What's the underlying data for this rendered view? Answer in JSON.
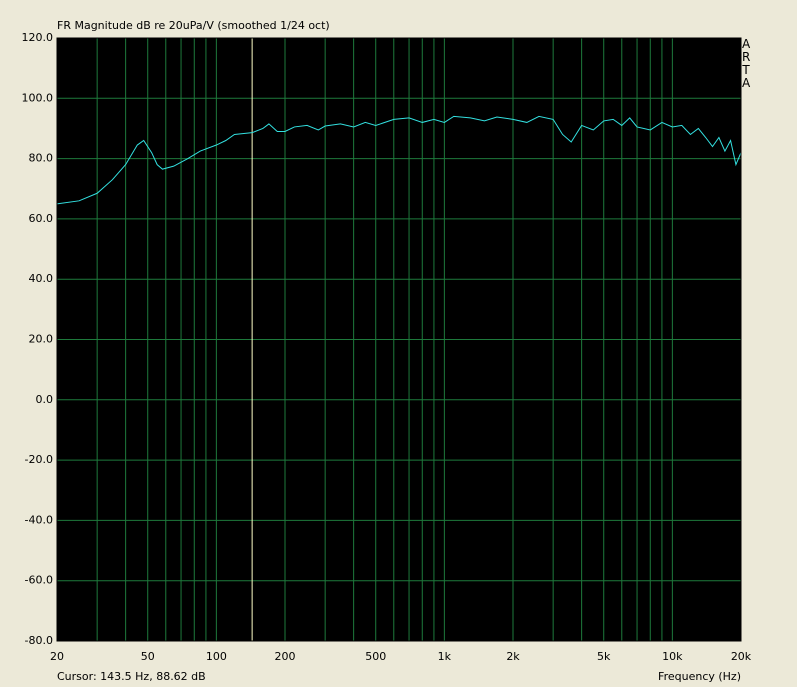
{
  "chart_data": {
    "type": "line",
    "title": "FR Magnitude dB re 20uPa/V (smoothed 1/24 oct)",
    "x_label": "Frequency (Hz)",
    "brand": "ARTA",
    "cursor_label": "Cursor: 143.5 Hz, 88.62 dB",
    "cursor_x": 143.5,
    "log_x": true,
    "grid": true,
    "grid_color": "#1e7a3c",
    "background": "#000000",
    "cursor_color": "#ffffc8",
    "color": "#33e0e0",
    "xlim": [
      20,
      20000
    ],
    "ylim": [
      -80,
      120
    ],
    "xticks": [
      20,
      50,
      100,
      200,
      500,
      {
        "value": 1000,
        "label": "1k"
      },
      {
        "value": 2000,
        "label": "2k"
      },
      {
        "value": 5000,
        "label": "5k"
      },
      {
        "value": 10000,
        "label": "10k"
      },
      {
        "value": 20000,
        "label": "20k"
      }
    ],
    "xminor": [
      30,
      40,
      60,
      70,
      80,
      90,
      300,
      400,
      600,
      700,
      800,
      900,
      3000,
      4000,
      6000,
      7000,
      8000,
      9000
    ],
    "yticks": [
      {
        "value": 120,
        "label": "120.0"
      },
      {
        "value": 100,
        "label": "100.0"
      },
      {
        "value": 80,
        "label": "80.0"
      },
      {
        "value": 60,
        "label": "60.0"
      },
      {
        "value": 40,
        "label": "40.0"
      },
      {
        "value": 20,
        "label": "20.0"
      },
      {
        "value": 0,
        "label": "0.0"
      },
      {
        "value": -20,
        "label": "-20.0"
      },
      {
        "value": -40,
        "label": "-40.0"
      },
      {
        "value": -60,
        "label": "-60.0"
      },
      {
        "value": -80,
        "label": "-80.0"
      }
    ],
    "x": [
      20,
      25,
      30,
      35,
      40,
      45,
      48,
      52,
      55,
      58,
      65,
      75,
      85,
      100,
      110,
      120,
      143.5,
      160,
      170,
      185,
      200,
      220,
      250,
      280,
      300,
      350,
      400,
      450,
      500,
      600,
      700,
      800,
      900,
      1000,
      1100,
      1300,
      1500,
      1700,
      2000,
      2300,
      2600,
      3000,
      3300,
      3600,
      4000,
      4500,
      5000,
      5500,
      6000,
      6500,
      7000,
      8000,
      9000,
      10000,
      11000,
      12000,
      13000,
      14000,
      15000,
      16000,
      17000,
      18000,
      19000,
      20000
    ],
    "values": [
      65,
      66,
      68.5,
      73,
      78,
      84.5,
      86,
      82,
      78,
      76.5,
      77.5,
      80,
      82.5,
      84.5,
      86,
      88,
      88.6,
      90,
      91.5,
      89,
      89,
      90.5,
      91,
      89.5,
      90.8,
      91.5,
      90.5,
      92,
      91,
      93,
      93.5,
      92,
      93,
      92,
      94,
      93.5,
      92.5,
      93.8,
      93,
      92,
      94,
      93,
      88,
      85.5,
      91,
      89.5,
      92.5,
      93,
      91,
      93.5,
      90.5,
      89.5,
      92,
      90.5,
      91,
      88,
      90,
      87,
      84,
      87,
      82.5,
      86,
      78,
      82
    ]
  }
}
